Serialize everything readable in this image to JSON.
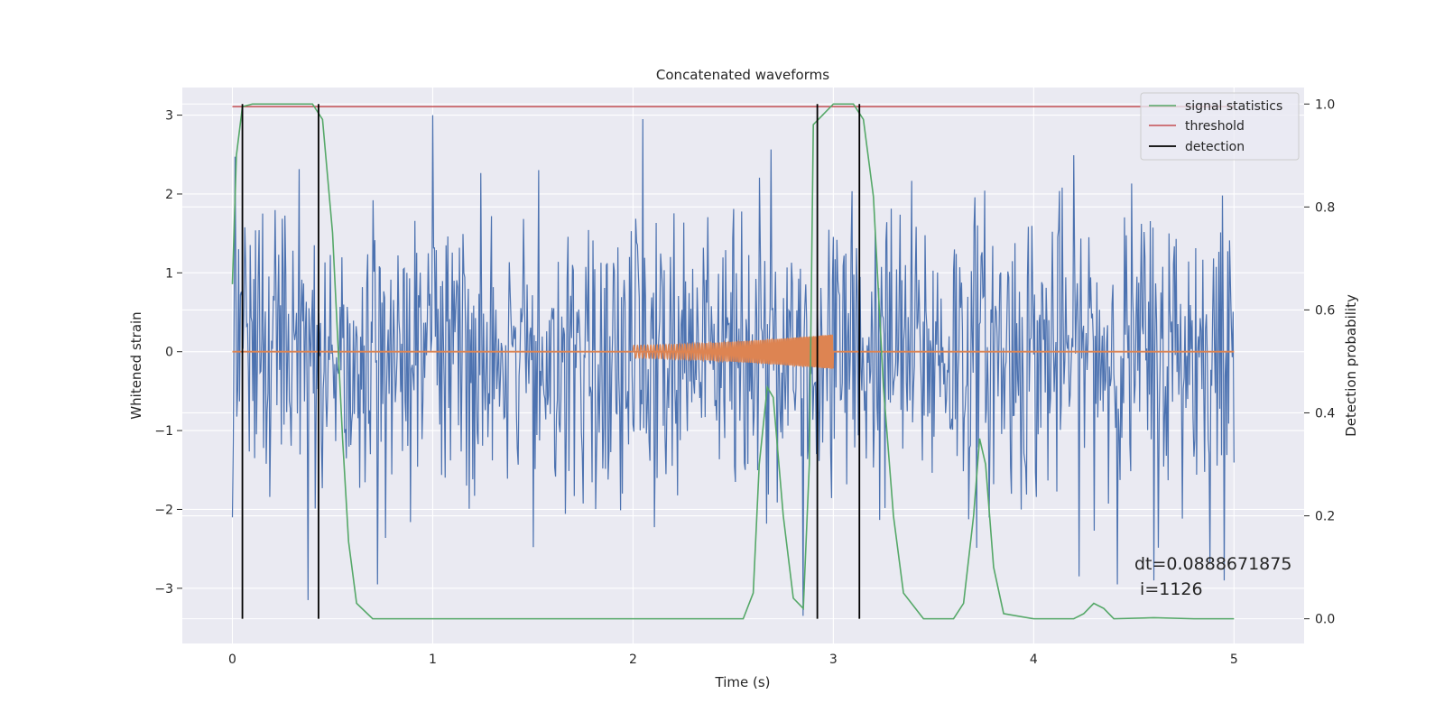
{
  "chart_data": {
    "type": "line",
    "title": "Concatenated waveforms",
    "xlabel": "Time (s)",
    "ylabel_left": "Whitened strain",
    "ylabel_right": "Detection probability",
    "xlim": [
      -0.25,
      5.35
    ],
    "ylim_left": [
      -3.7,
      3.35
    ],
    "ylim_right": [
      -0.048,
      1.032
    ],
    "x_ticks": [
      0,
      1,
      2,
      3,
      4,
      5
    ],
    "x_tick_labels": [
      "0",
      "1",
      "2",
      "3",
      "4",
      "5"
    ],
    "y_left_ticks": [
      3,
      2,
      1,
      0,
      -1,
      -2,
      -3
    ],
    "y_left_tick_labels": [
      "3",
      "2",
      "1",
      "0",
      "−1",
      "−2",
      "−3"
    ],
    "y_right_ticks": [
      1.0,
      0.8,
      0.6,
      0.4,
      0.2,
      0.0
    ],
    "y_right_tick_labels": [
      "1.0",
      "0.8",
      "0.6",
      "0.4",
      "0.2",
      "0.0"
    ],
    "grid": true,
    "legend_position": "top-right",
    "series": [
      {
        "name": "",
        "axis": "left",
        "color": "#4c72b0",
        "kind": "noise",
        "x_range": [
          0,
          5
        ],
        "samples": 1126,
        "envelope": 2.95,
        "estimated_peaks": [
          [
            0.0,
            2.6
          ],
          [
            0.0,
            -2.1
          ],
          [
            0.38,
            -3.15
          ],
          [
            1.0,
            3.0
          ],
          [
            2.05,
            2.95
          ],
          [
            2.85,
            -3.35
          ],
          [
            4.6,
            -2.9
          ],
          [
            4.95,
            -2.9
          ]
        ]
      },
      {
        "name": "",
        "axis": "left",
        "color": "#dd8452",
        "kind": "chirp",
        "baseline_x": [
          0,
          5
        ],
        "baseline_y": 0,
        "chirp_x_range": [
          2.0,
          3.0
        ],
        "chirp_amplitude_range": [
          0.08,
          0.22
        ]
      },
      {
        "name": "signal statistics",
        "axis": "right",
        "color": "#55a868",
        "x": [
          0.0,
          0.02,
          0.05,
          0.1,
          0.2,
          0.4,
          0.45,
          0.5,
          0.55,
          0.58,
          0.62,
          0.7,
          1.0,
          2.0,
          2.55,
          2.6,
          2.63,
          2.67,
          2.7,
          2.75,
          2.8,
          2.85,
          2.88,
          2.9,
          3.0,
          3.1,
          3.15,
          3.2,
          3.25,
          3.3,
          3.35,
          3.45,
          3.6,
          3.65,
          3.7,
          3.73,
          3.76,
          3.8,
          3.85,
          4.0,
          4.2,
          4.25,
          4.3,
          4.35,
          4.4,
          4.6,
          4.8,
          5.0
        ],
        "y": [
          0.65,
          0.9,
          0.995,
          1.0,
          1.0,
          1.0,
          0.97,
          0.75,
          0.35,
          0.15,
          0.03,
          0.0,
          0.0,
          0.0,
          0.0,
          0.05,
          0.3,
          0.45,
          0.43,
          0.2,
          0.04,
          0.02,
          0.3,
          0.96,
          1.0,
          1.0,
          0.97,
          0.82,
          0.45,
          0.2,
          0.05,
          0.0,
          0.0,
          0.03,
          0.2,
          0.35,
          0.3,
          0.1,
          0.01,
          0.0,
          0.0,
          0.01,
          0.03,
          0.02,
          0.0,
          0.002,
          0.0,
          0.0
        ]
      },
      {
        "name": "threshold",
        "axis": "right",
        "color": "#c44e52",
        "x": [
          0,
          5
        ],
        "y": [
          0.995,
          0.995
        ]
      }
    ],
    "detections": {
      "name": "detection",
      "color": "#000000",
      "x": [
        0.05,
        0.43,
        2.92,
        3.13
      ],
      "y_range": [
        0.0,
        1.0
      ]
    },
    "annotations": [
      {
        "text": "dt=0.0888671875",
        "x": 4.5,
        "y_right": 0.105
      },
      {
        "text": " i=1126",
        "x": 4.5,
        "y_right": 0.057
      }
    ],
    "colors": {
      "plot_background": "#eaeaf2",
      "grid": "#ffffff",
      "legend_background": "#eaeaf2",
      "legend_border": "#cccccc"
    }
  }
}
